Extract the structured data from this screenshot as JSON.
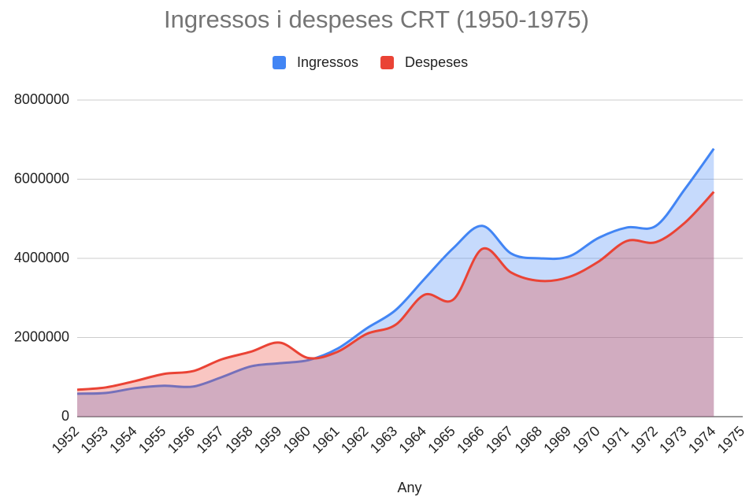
{
  "chart_data": {
    "type": "area",
    "title": "Ingressos i despeses CRT (1950-1975)",
    "x_label": "Any",
    "categories": [
      "1952",
      "1953",
      "1954",
      "1955",
      "1956",
      "1957",
      "1958",
      "1959",
      "1960",
      "1961",
      "1962",
      "1963",
      "1964",
      "1965",
      "1966",
      "1967",
      "1968",
      "1969",
      "1970",
      "1971",
      "1972",
      "1973",
      "1974",
      "1975"
    ],
    "series": [
      {
        "name": "Ingressos",
        "color": "#4285f4",
        "values": [
          580000,
          600000,
          720000,
          780000,
          760000,
          1000000,
          1270000,
          1350000,
          1430000,
          1720000,
          2230000,
          2690000,
          3480000,
          4260000,
          4820000,
          4120000,
          4000000,
          4050000,
          4510000,
          4780000,
          4820000,
          5750000,
          6770000,
          null
        ]
      },
      {
        "name": "Despeses",
        "color": "#ea4335",
        "values": [
          680000,
          740000,
          900000,
          1080000,
          1150000,
          1450000,
          1640000,
          1870000,
          1480000,
          1640000,
          2090000,
          2320000,
          3080000,
          2960000,
          4240000,
          3640000,
          3430000,
          3530000,
          3910000,
          4440000,
          4410000,
          4900000,
          5680000,
          null
        ]
      }
    ],
    "ylim": [
      0,
      8000000
    ],
    "yticks": [
      0,
      2000000,
      4000000,
      6000000,
      8000000
    ],
    "grid": true,
    "legend": "top"
  }
}
